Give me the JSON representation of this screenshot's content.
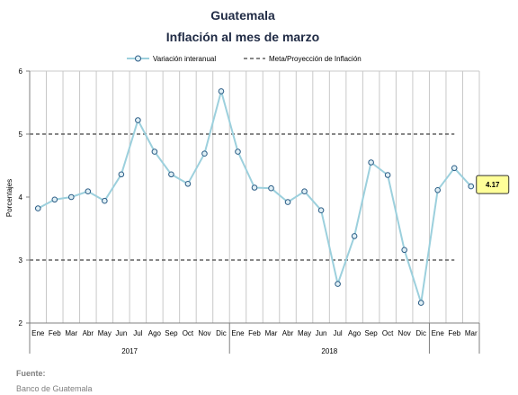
{
  "colors": {
    "series": "#9cd0dd",
    "marker_fill": "#dfeff5",
    "marker_stroke": "#2c5d86",
    "target": "#606060",
    "grid": "#c8c8c8",
    "callout_fill": "#ffff99",
    "title": "#1f2a44"
  },
  "footer": {
    "source_label": "Fuente:",
    "source_value": "Banco de Guatemala"
  },
  "chart_data": {
    "type": "line",
    "title": "Guatemala",
    "subtitle": "Inflación al mes de marzo",
    "xlabel": "",
    "ylabel": "Porcentajes",
    "ylim": [
      2,
      6
    ],
    "yticks": [
      2,
      3,
      4,
      5,
      6
    ],
    "grid": true,
    "legend_position": "top",
    "categories": [
      "Ene",
      "Feb",
      "Mar",
      "Abr",
      "May",
      "Jun",
      "Jul",
      "Ago",
      "Sep",
      "Oct",
      "Nov",
      "Dic",
      "Ene",
      "Feb",
      "Mar",
      "Abr",
      "May",
      "Jun",
      "Jul",
      "Ago",
      "Sep",
      "Oct",
      "Nov",
      "Dic",
      "Ene",
      "Feb",
      "Mar"
    ],
    "year_groups": [
      {
        "label": "2017",
        "count": 12
      },
      {
        "label": "2018",
        "count": 12
      },
      {
        "label": "",
        "count": 3
      }
    ],
    "series": [
      {
        "name": "Variación interanual",
        "values": [
          3.82,
          3.96,
          4.0,
          4.09,
          3.94,
          4.36,
          5.22,
          4.72,
          4.36,
          4.21,
          4.69,
          5.68,
          4.72,
          4.15,
          4.14,
          3.92,
          4.09,
          3.79,
          2.62,
          3.38,
          4.55,
          4.35,
          3.16,
          2.32,
          4.11,
          4.46,
          4.17
        ]
      },
      {
        "name": "Meta/Proyección de Inflación",
        "upper": 5,
        "lower": 3,
        "points": 26
      }
    ],
    "annotation": {
      "label": "4.17",
      "index": 26
    }
  }
}
